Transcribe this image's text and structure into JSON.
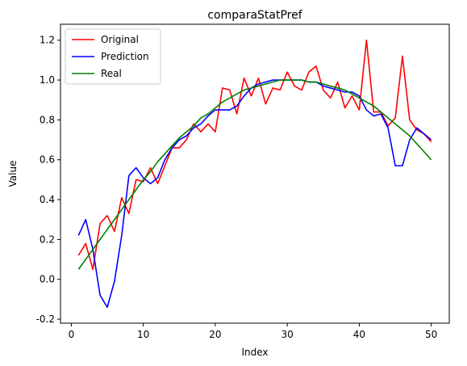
{
  "chart_data": {
    "type": "line",
    "title": "comparaStatPref",
    "xlabel": "Index",
    "ylabel": "Value",
    "xlim": [
      -1.5,
      52.5
    ],
    "ylim": [
      -0.22,
      1.28
    ],
    "xticks": [
      0,
      10,
      20,
      30,
      40,
      50
    ],
    "yticks": [
      -0.2,
      0.0,
      0.2,
      0.4,
      0.6,
      0.8,
      1.0,
      1.2
    ],
    "grid": false,
    "legend_position": "top-left",
    "x": [
      1,
      2,
      3,
      4,
      5,
      6,
      7,
      8,
      9,
      10,
      11,
      12,
      13,
      14,
      15,
      16,
      17,
      18,
      19,
      20,
      21,
      22,
      23,
      24,
      25,
      26,
      27,
      28,
      29,
      30,
      31,
      32,
      33,
      34,
      35,
      36,
      37,
      38,
      39,
      40,
      41,
      42,
      43,
      44,
      45,
      46,
      47,
      48,
      49,
      50
    ],
    "series": [
      {
        "name": "Original",
        "color": "#ff0000",
        "values": [
          0.12,
          0.18,
          0.05,
          0.28,
          0.32,
          0.24,
          0.41,
          0.33,
          0.5,
          0.49,
          0.56,
          0.48,
          0.57,
          0.66,
          0.66,
          0.7,
          0.78,
          0.74,
          0.78,
          0.74,
          0.96,
          0.95,
          0.83,
          1.01,
          0.92,
          1.01,
          0.88,
          0.96,
          0.95,
          1.04,
          0.97,
          0.95,
          1.04,
          1.07,
          0.95,
          0.91,
          0.99,
          0.86,
          0.92,
          0.85,
          1.2,
          0.84,
          0.84,
          0.77,
          0.81,
          1.12,
          0.8,
          0.75,
          0.73,
          0.69
        ]
      },
      {
        "name": "Prediction",
        "color": "#0000ff",
        "values": [
          0.22,
          0.3,
          0.15,
          -0.08,
          -0.14,
          -0.01,
          0.22,
          0.52,
          0.56,
          0.51,
          0.48,
          0.51,
          0.6,
          0.66,
          0.7,
          0.72,
          0.76,
          0.78,
          0.82,
          0.85,
          0.85,
          0.85,
          0.87,
          0.92,
          0.96,
          0.98,
          0.99,
          1.0,
          1.0,
          1.0,
          1.0,
          1.0,
          0.99,
          0.99,
          0.97,
          0.96,
          0.95,
          0.94,
          0.94,
          0.92,
          0.85,
          0.82,
          0.83,
          0.76,
          0.57,
          0.57,
          0.7,
          0.76,
          0.73,
          0.7
        ]
      },
      {
        "name": "Real",
        "color": "#008000",
        "values": [
          0.05,
          0.1,
          0.15,
          0.2,
          0.25,
          0.3,
          0.35,
          0.4,
          0.45,
          0.5,
          0.54,
          0.59,
          0.63,
          0.67,
          0.71,
          0.74,
          0.77,
          0.81,
          0.83,
          0.86,
          0.89,
          0.91,
          0.93,
          0.95,
          0.96,
          0.97,
          0.98,
          0.99,
          1.0,
          1.0,
          1.0,
          1.0,
          0.99,
          0.99,
          0.98,
          0.97,
          0.96,
          0.95,
          0.93,
          0.91,
          0.89,
          0.87,
          0.84,
          0.81,
          0.78,
          0.75,
          0.72,
          0.68,
          0.64,
          0.6
        ]
      }
    ]
  }
}
